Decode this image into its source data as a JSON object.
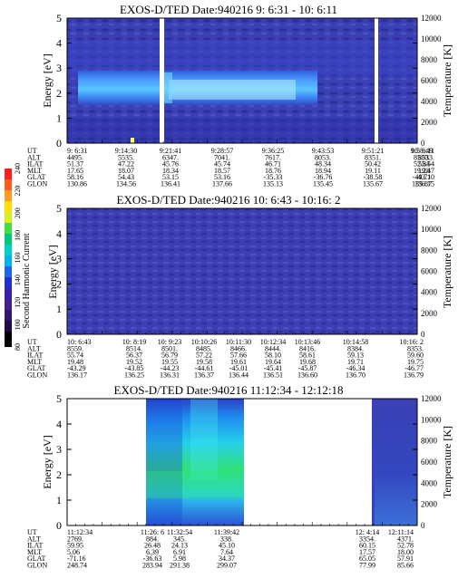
{
  "chart_data": [
    {
      "type": "heatmap",
      "title": "EXOS-D/TED   Date:940216   9: 6:31 - 10: 6:11",
      "ylabel": "Energy [eV]",
      "y2label": "Temperature [K]",
      "ylim": [
        0,
        5
      ],
      "y2lim": [
        0,
        12000
      ],
      "yticks": [
        0,
        1,
        2,
        3,
        4,
        5
      ],
      "y2ticks": [
        0,
        2000,
        4000,
        6000,
        8000,
        10000,
        12000
      ],
      "row_labels": [
        "UT",
        "ALT",
        "ILAT",
        "MLT",
        "GLAT",
        "GLON"
      ],
      "columns": [
        [
          "9: 6:31",
          "4495.",
          "51.37",
          "17.65",
          "58.16",
          "130.86"
        ],
        [
          "9:14:30",
          "5535.",
          "47.22",
          "18.07",
          "54.43",
          "134.56"
        ],
        [
          "9:21:41",
          "6347.",
          "45.76",
          "18.34",
          "53.15",
          "136.41"
        ],
        [
          "9:28:57",
          "7041.",
          "45.74",
          "18.57",
          "53.16",
          "137.66"
        ],
        [
          "9:36:25",
          "7617.",
          "46.71",
          "18.76",
          "-35.33",
          "135.13"
        ],
        [
          "9:43:53",
          "8053.",
          "48.34",
          "18.94",
          "-36.76",
          "135.45"
        ],
        [
          "9:51:21",
          "8351.",
          "50.42",
          "19.11",
          "-38.58",
          "135.67"
        ],
        [
          "9:58:49",
          "8510.",
          "52.84",
          "19.28",
          "-40.71",
          "135.87"
        ],
        [
          "10: 6:11",
          "8533.",
          "55.54",
          "19.47",
          "-43.10",
          "136.15"
        ]
      ]
    },
    {
      "type": "heatmap",
      "title": "EXOS-D/TED   Date:940216   10: 6:43 - 10:16: 2",
      "ylabel": "Energy [eV]",
      "y2label": "Temperature [K]",
      "ylim": [
        0,
        5
      ],
      "y2lim": [
        0,
        12000
      ],
      "yticks": [
        0,
        1,
        2,
        3,
        4,
        5
      ],
      "y2ticks": [
        0,
        2000,
        4000,
        6000,
        8000,
        10000,
        12000
      ],
      "colorbar": {
        "label": "Second Harmonic Current",
        "ticks": [
          80,
          100,
          120,
          140,
          160,
          180,
          200,
          220,
          240
        ]
      },
      "row_labels": [
        "UT",
        "ALT",
        "ILAT",
        "MLT",
        "GLAT",
        "GLON"
      ],
      "columns": [
        [
          "10: 6:43",
          "8559.",
          "55.74",
          "19.48",
          "-43.29",
          "136.17"
        ],
        [
          "10: 8:19",
          "8514.",
          "56.37",
          "19.52",
          "-43.85",
          "136.25"
        ],
        [
          "10: 9:23",
          "8501.",
          "56.79",
          "19.55",
          "-44.23",
          "136.31"
        ],
        [
          "10:10:26",
          "8485.",
          "57.22",
          "19.58",
          "-44.61",
          "136.37"
        ],
        [
          "10:11:30",
          "8466.",
          "57.66",
          "19.61",
          "-45.01",
          "136.44"
        ],
        [
          "10:12:34",
          "8444.",
          "58.10",
          "19.64",
          "-45.41",
          "136.51"
        ],
        [
          "10:13:46",
          "8416.",
          "58.61",
          "19.68",
          "-45.87",
          "136.60"
        ],
        [
          "10:14:58",
          "8384.",
          "59.13",
          "19.71",
          "-46.34",
          "136.70"
        ],
        [
          "10:16: 2",
          "8353.",
          "59.60",
          "19.75",
          "-46.77",
          "136.79"
        ]
      ]
    },
    {
      "type": "heatmap",
      "title": "EXOS-D/TED   Date:940216   11:12:34 - 12:12:18",
      "ylabel": "Energy [eV]",
      "y2label": "Temperature [K]",
      "ylim": [
        0,
        5
      ],
      "y2lim": [
        0,
        12000
      ],
      "yticks": [
        0,
        1,
        2,
        3,
        4,
        5
      ],
      "y2ticks": [
        0,
        2000,
        4000,
        6000,
        8000,
        10000,
        12000
      ],
      "row_labels": [
        "UT",
        "ALT",
        "ILAT",
        "MLT",
        "GLAT",
        "GLON"
      ],
      "columns": [
        [
          "11:12:34",
          "2769.",
          "59.95",
          "5.06",
          "-71.16",
          "248.74"
        ],
        [
          "11:26: 6",
          "884.",
          "26.48",
          "6.39",
          "-36.63",
          "283.94"
        ],
        [
          "11:32:54",
          "345.",
          "24.13",
          "6.91",
          "5.98",
          "291.38"
        ],
        [
          "11:39:42",
          "338.",
          "45.10",
          "7.64",
          "34.37",
          "299.07"
        ],
        [
          "12: 4:14",
          "3354.",
          "60.15",
          "17.57",
          "65.05",
          "77.99"
        ],
        [
          "12:11:14",
          "4371.",
          "52.78",
          "18.00",
          "57.91",
          "85.66"
        ]
      ]
    }
  ]
}
